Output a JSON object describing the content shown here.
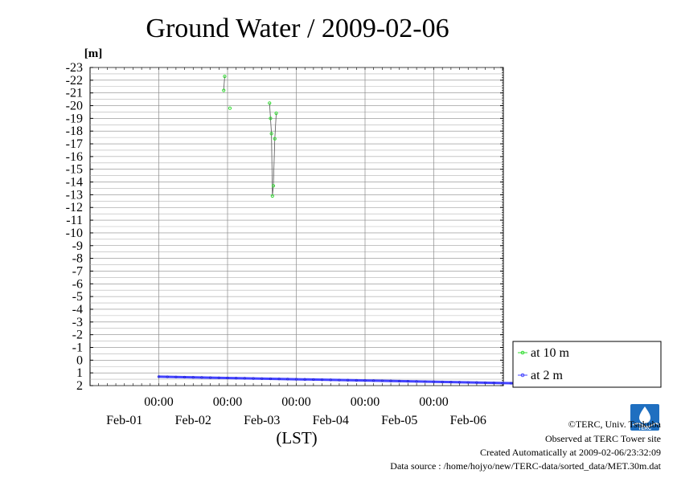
{
  "chart_data": {
    "type": "line",
    "title": "Ground Water / 2009-02-06",
    "ylabel": "[m]",
    "xlabel": "(LST)",
    "ylim": [
      2,
      -23
    ],
    "y_inverted": true,
    "y_ticks": [
      "-23",
      "-22",
      "-21",
      "-20",
      "-19",
      "-18",
      "-17",
      "-16",
      "-15",
      "-14",
      "-13",
      "-12",
      "-11",
      "-10",
      "-9",
      "-8",
      "-7",
      "-6",
      "-5",
      "-4",
      "-3",
      "-2",
      "-1",
      "0",
      "1",
      "2"
    ],
    "x_time_labels": [
      "00:00",
      "00:00",
      "00:00",
      "00:00",
      "00:00"
    ],
    "x_date_labels": [
      "Feb-01",
      "Feb-02",
      "Feb-03",
      "Feb-04",
      "Feb-05",
      "Feb-06"
    ],
    "grid": true,
    "legend_position": "right",
    "series": [
      {
        "name": "at 10 m",
        "color": "#33dd33",
        "segments": [
          [
            [
              "2009-02-01 23:00",
              -22.3
            ],
            [
              "2009-02-01 22:40",
              -21.2
            ]
          ],
          [
            [
              "2009-02-02 00:50",
              -19.8
            ]
          ],
          [
            [
              "2009-02-02 14:40",
              -20.2
            ],
            [
              "2009-02-02 15:00",
              -19.0
            ],
            [
              "2009-02-02 15:20",
              -17.8
            ],
            [
              "2009-02-02 15:40",
              -12.9
            ],
            [
              "2009-02-02 16:00",
              -13.7
            ],
            [
              "2009-02-02 16:30",
              -17.4
            ],
            [
              "2009-02-02 17:00",
              -19.4
            ]
          ]
        ]
      },
      {
        "name": "at 2 m",
        "color": "#4444ff",
        "start": "2009-02-01 00:00",
        "end": "2009-02-06 23:59",
        "start_value": 1.3,
        "end_value": 1.9
      }
    ]
  },
  "credits": {
    "copyright": "©TERC, Univ. Tsukuba",
    "observed": "Observed at TERC Tower site",
    "created": "Created Automatically at 2009-02-06/23:32:09",
    "source": "Data source : /home/hojyo/new/TERC-data/sorted_data/MET.30m.dat"
  },
  "logo": {
    "text": "TERC",
    "color": "#1f6fc0"
  }
}
